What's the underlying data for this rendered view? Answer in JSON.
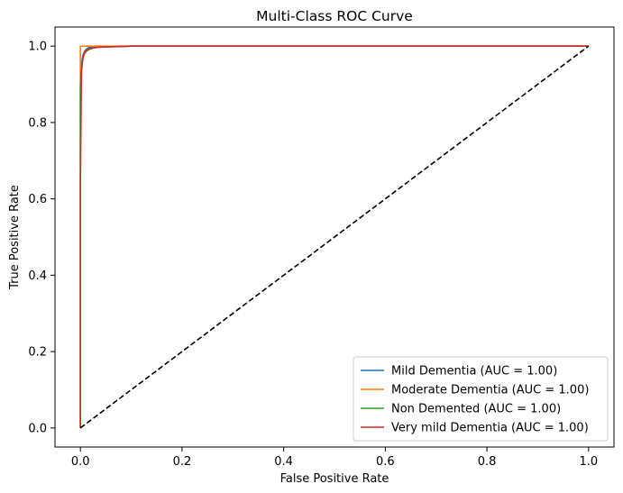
{
  "chart_data": {
    "type": "line",
    "title": "Multi-Class ROC Curve",
    "xlabel": "False Positive Rate",
    "ylabel": "True Positive Rate",
    "xlim": [
      -0.05,
      1.05
    ],
    "ylim": [
      -0.05,
      1.05
    ],
    "xticks": [
      0.0,
      0.2,
      0.4,
      0.6,
      0.8,
      1.0
    ],
    "yticks": [
      0.0,
      0.2,
      0.4,
      0.6,
      0.8,
      1.0
    ],
    "xtick_labels": [
      "0.0",
      "0.2",
      "0.4",
      "0.6",
      "0.8",
      "1.0"
    ],
    "ytick_labels": [
      "0.0",
      "0.2",
      "0.4",
      "0.6",
      "0.8",
      "1.0"
    ],
    "grid": false,
    "legend_position": "lower-right",
    "series": [
      {
        "name": "Mild Dementia (AUC = 1.00)",
        "color": "#1f77b4",
        "x": [
          0,
          0,
          0.002,
          0.004,
          0.006,
          0.01,
          0.015,
          0.02,
          0.03,
          0.05,
          0.08,
          0.1,
          1.0
        ],
        "y": [
          0,
          0.9,
          0.95,
          0.97,
          0.98,
          0.99,
          0.995,
          0.997,
          0.998,
          0.999,
          0.9995,
          1.0,
          1.0
        ]
      },
      {
        "name": "Moderate Dementia (AUC = 1.00)",
        "color": "#ff7f0e",
        "x": [
          0,
          0,
          1.0
        ],
        "y": [
          0,
          1.0,
          1.0
        ]
      },
      {
        "name": "Non Demented (AUC = 1.00)",
        "color": "#2ca02c",
        "x": [
          0,
          0,
          0.001,
          0.003,
          0.005,
          0.008,
          0.012,
          0.018,
          0.025,
          0.035,
          0.05,
          0.07,
          0.1,
          1.0
        ],
        "y": [
          0,
          0.89,
          0.93,
          0.955,
          0.97,
          0.98,
          0.987,
          0.992,
          0.995,
          0.997,
          0.998,
          0.999,
          1.0,
          1.0
        ]
      },
      {
        "name": "Very mild Dementia (AUC = 1.00)",
        "color": "#d62728",
        "x": [
          0,
          0,
          0.002,
          0.004,
          0.006,
          0.009,
          0.013,
          0.02,
          0.03,
          0.05,
          0.08,
          0.1,
          1.0
        ],
        "y": [
          0,
          0.64,
          0.93,
          0.96,
          0.975,
          0.985,
          0.99,
          0.994,
          0.997,
          0.998,
          0.999,
          1.0,
          1.0
        ]
      },
      {
        "name": "",
        "color": "#000000",
        "dashed": true,
        "x": [
          0,
          1.0
        ],
        "y": [
          0,
          1.0
        ]
      }
    ]
  }
}
